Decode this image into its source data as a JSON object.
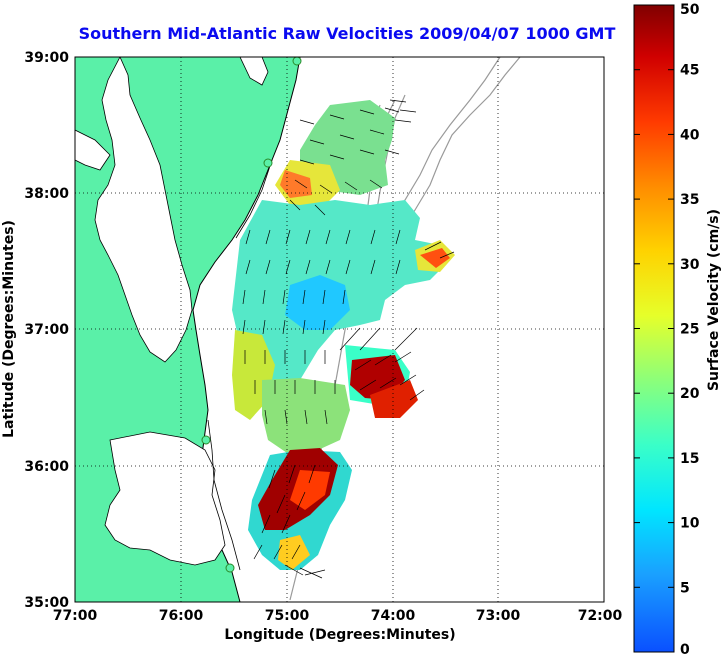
{
  "title": "Southern Mid-Atlantic Raw Velocities 2009/04/07 1000 GMT",
  "xlabel": "Longitude (Degrees:Minutes)",
  "ylabel": "Latitude (Degrees:Minutes)",
  "colorbar_label": "Surface Velocity (cm/s)",
  "x_ticks": [
    "77:00",
    "76:00",
    "75:00",
    "74:00",
    "73:00",
    "72:00"
  ],
  "y_ticks": [
    "39:00",
    "38:00",
    "37:00",
    "36:00",
    "35:00"
  ],
  "colorbar_ticks": [
    "0",
    "5",
    "10",
    "15",
    "20",
    "25",
    "30",
    "35",
    "40",
    "45",
    "50"
  ],
  "colors": {
    "land": "#5af0a8",
    "coastline": "#000000",
    "bathymetry": "#9a9a9a",
    "title": "#0a0af0",
    "grid": "#000000"
  },
  "chart_data": {
    "type": "heatmap",
    "x_range_deg": [
      -77,
      -72
    ],
    "y_range_deg": [
      35,
      39
    ],
    "colorbar_range_cm_s": [
      0,
      50
    ],
    "grid": true
  }
}
